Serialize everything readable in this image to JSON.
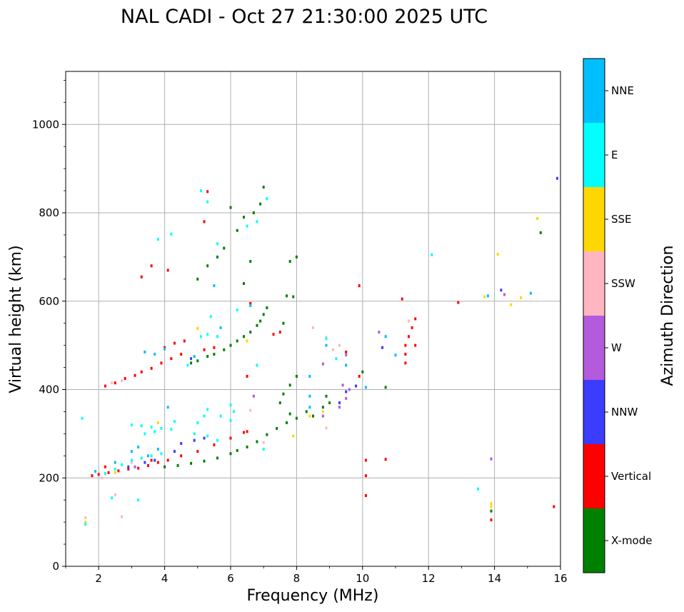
{
  "chart_data": {
    "type": "scatter",
    "title": "NAL CADI - Oct 27 21:30:00 2025 UTC",
    "xlabel": "Frequency (MHz)",
    "ylabel": "Virtual height (km)",
    "xlim": [
      1,
      16
    ],
    "ylim": [
      0,
      1120
    ],
    "xticks": [
      2,
      4,
      6,
      8,
      10,
      12,
      14,
      16
    ],
    "yticks": [
      0,
      200,
      400,
      600,
      800,
      1000
    ],
    "grid": true,
    "colorbar": {
      "title": "Azimuth Direction",
      "categories": [
        {
          "name": "X-mode",
          "color": "#008000"
        },
        {
          "name": "Vertical",
          "color": "#ff0000"
        },
        {
          "name": "NNW",
          "color": "#3c3cff"
        },
        {
          "name": "W",
          "color": "#b45adc"
        },
        {
          "name": "SSW",
          "color": "#ffb6c1"
        },
        {
          "name": "SSE",
          "color": "#ffd700"
        },
        {
          "name": "E",
          "color": "#00ffff"
        },
        {
          "name": "NNE",
          "color": "#00bfff"
        }
      ]
    },
    "series": [
      {
        "name": "X-mode",
        "points": [
          [
            4.0,
            225
          ],
          [
            4.4,
            228
          ],
          [
            4.8,
            233
          ],
          [
            5.2,
            238
          ],
          [
            5.6,
            245
          ],
          [
            6.0,
            255
          ],
          [
            6.2,
            262
          ],
          [
            6.5,
            270
          ],
          [
            6.8,
            282
          ],
          [
            7.1,
            298
          ],
          [
            7.4,
            312
          ],
          [
            7.7,
            325
          ],
          [
            7.8,
            345
          ],
          [
            8.0,
            335
          ],
          [
            8.3,
            350
          ],
          [
            8.5,
            340
          ],
          [
            8.8,
            360
          ],
          [
            9.0,
            370
          ],
          [
            8.9,
            385
          ],
          [
            7.5,
            370
          ],
          [
            7.6,
            390
          ],
          [
            7.8,
            410
          ],
          [
            8.0,
            430
          ],
          [
            4.8,
            460
          ],
          [
            5.0,
            465
          ],
          [
            5.3,
            475
          ],
          [
            5.5,
            480
          ],
          [
            5.8,
            490
          ],
          [
            6.0,
            500
          ],
          [
            6.2,
            510
          ],
          [
            6.4,
            520
          ],
          [
            6.6,
            530
          ],
          [
            6.8,
            545
          ],
          [
            6.9,
            555
          ],
          [
            7.0,
            570
          ],
          [
            7.1,
            585
          ],
          [
            7.9,
            610
          ],
          [
            7.7,
            612
          ],
          [
            8.0,
            700
          ],
          [
            7.8,
            690
          ],
          [
            6.6,
            690
          ],
          [
            6.4,
            640
          ],
          [
            5.0,
            650
          ],
          [
            5.3,
            680
          ],
          [
            5.6,
            700
          ],
          [
            5.8,
            720
          ],
          [
            6.2,
            760
          ],
          [
            6.4,
            790
          ],
          [
            6.7,
            800
          ],
          [
            6.9,
            820
          ],
          [
            7.0,
            858
          ],
          [
            6.0,
            812
          ],
          [
            10.0,
            440
          ],
          [
            10.7,
            405
          ],
          [
            15.4,
            755
          ],
          [
            13.9,
            125
          ],
          [
            7.6,
            550
          ]
        ]
      },
      {
        "name": "Vertical",
        "points": [
          [
            1.8,
            205
          ],
          [
            2.0,
            208
          ],
          [
            2.3,
            212
          ],
          [
            2.6,
            216
          ],
          [
            2.9,
            220
          ],
          [
            3.2,
            222
          ],
          [
            3.5,
            228
          ],
          [
            3.8,
            235
          ],
          [
            4.1,
            240
          ],
          [
            4.5,
            250
          ],
          [
            5.0,
            260
          ],
          [
            5.5,
            275
          ],
          [
            6.0,
            290
          ],
          [
            6.5,
            305
          ],
          [
            6.4,
            303
          ],
          [
            2.2,
            408
          ],
          [
            2.5,
            415
          ],
          [
            2.8,
            425
          ],
          [
            3.1,
            432
          ],
          [
            3.3,
            440
          ],
          [
            3.6,
            448
          ],
          [
            3.9,
            460
          ],
          [
            4.2,
            470
          ],
          [
            4.5,
            480
          ],
          [
            4.0,
            495
          ],
          [
            4.3,
            505
          ],
          [
            4.6,
            510
          ],
          [
            5.2,
            490
          ],
          [
            5.5,
            495
          ],
          [
            6.5,
            430
          ],
          [
            6.6,
            595
          ],
          [
            7.3,
            525
          ],
          [
            7.5,
            530
          ],
          [
            3.3,
            655
          ],
          [
            3.6,
            680
          ],
          [
            4.1,
            670
          ],
          [
            5.2,
            780
          ],
          [
            5.3,
            848
          ],
          [
            9.5,
            485
          ],
          [
            9.9,
            430
          ],
          [
            9.9,
            635
          ],
          [
            10.1,
            240
          ],
          [
            10.1,
            205
          ],
          [
            10.1,
            160
          ],
          [
            10.7,
            242
          ],
          [
            11.3,
            460
          ],
          [
            11.3,
            480
          ],
          [
            11.3,
            500
          ],
          [
            11.4,
            520
          ],
          [
            11.5,
            540
          ],
          [
            11.6,
            560
          ],
          [
            11.6,
            500
          ],
          [
            11.2,
            605
          ],
          [
            12.9,
            597
          ],
          [
            13.9,
            105
          ],
          [
            15.8,
            135
          ],
          [
            3.6,
            240
          ],
          [
            2.2,
            225
          ]
        ]
      },
      {
        "name": "NNW",
        "points": [
          [
            2.9,
            225
          ],
          [
            3.4,
            235
          ],
          [
            3.7,
            240
          ],
          [
            4.3,
            260
          ],
          [
            4.5,
            278
          ],
          [
            4.9,
            285
          ],
          [
            5.2,
            290
          ],
          [
            9.5,
            395
          ],
          [
            9.3,
            370
          ],
          [
            9.8,
            408
          ],
          [
            10.6,
            495
          ],
          [
            14.2,
            625
          ],
          [
            15.9,
            878
          ],
          [
            4.8,
            470
          ]
        ]
      },
      {
        "name": "W",
        "points": [
          [
            9.3,
            360
          ],
          [
            9.5,
            380
          ],
          [
            9.4,
            410
          ],
          [
            9.6,
            400
          ],
          [
            8.8,
            340
          ],
          [
            9.5,
            478
          ],
          [
            10.5,
            530
          ],
          [
            14.3,
            615
          ],
          [
            13.9,
            243
          ],
          [
            2.2,
            210
          ],
          [
            6.7,
            385
          ],
          [
            8.8,
            458
          ],
          [
            3.1,
            225
          ]
        ]
      },
      {
        "name": "SSW",
        "points": [
          [
            8.5,
            540
          ],
          [
            8.9,
            518
          ],
          [
            8.9,
            313
          ],
          [
            9.3,
            500
          ],
          [
            9.1,
            490
          ],
          [
            2.5,
            162
          ],
          [
            2.7,
            112
          ],
          [
            2.4,
            415
          ],
          [
            2.7,
            420
          ],
          [
            1.6,
            110
          ],
          [
            11.4,
            555
          ],
          [
            3.0,
            235
          ],
          [
            7.0,
            280
          ],
          [
            6.6,
            353
          ],
          [
            2.1,
            200
          ]
        ]
      },
      {
        "name": "SSE",
        "points": [
          [
            7.9,
            295
          ],
          [
            8.4,
            340
          ],
          [
            8.8,
            350
          ],
          [
            13.7,
            610
          ],
          [
            14.1,
            706
          ],
          [
            14.5,
            592
          ],
          [
            14.8,
            608
          ],
          [
            15.3,
            787
          ],
          [
            13.9,
            135
          ],
          [
            13.9,
            142
          ],
          [
            1.6,
            100
          ],
          [
            2.5,
            212
          ],
          [
            3.8,
            325
          ],
          [
            5.0,
            538
          ],
          [
            6.5,
            510
          ]
        ]
      },
      {
        "name": "E",
        "points": [
          [
            3.0,
            320
          ],
          [
            3.3,
            318
          ],
          [
            3.6,
            315
          ],
          [
            3.9,
            312
          ],
          [
            4.2,
            310
          ],
          [
            3.4,
            300
          ],
          [
            3.7,
            305
          ],
          [
            4.3,
            328
          ],
          [
            5.0,
            325
          ],
          [
            5.2,
            340
          ],
          [
            5.3,
            355
          ],
          [
            5.7,
            340
          ],
          [
            6.0,
            330
          ],
          [
            4.9,
            300
          ],
          [
            5.3,
            295
          ],
          [
            5.6,
            285
          ],
          [
            6.1,
            350
          ],
          [
            6.0,
            365
          ],
          [
            2.5,
            220
          ],
          [
            2.7,
            230
          ],
          [
            3.0,
            240
          ],
          [
            3.3,
            245
          ],
          [
            3.6,
            250
          ],
          [
            3.9,
            255
          ],
          [
            2.2,
            210
          ],
          [
            4.7,
            455
          ],
          [
            5.1,
            520
          ],
          [
            5.3,
            525
          ],
          [
            5.4,
            565
          ],
          [
            5.6,
            520
          ],
          [
            6.2,
            580
          ],
          [
            6.8,
            455
          ],
          [
            5.1,
            850
          ],
          [
            5.3,
            825
          ],
          [
            4.2,
            752
          ],
          [
            3.8,
            740
          ],
          [
            5.6,
            730
          ],
          [
            6.8,
            780
          ],
          [
            7.1,
            832
          ],
          [
            8.9,
            515
          ],
          [
            6.5,
            770
          ],
          [
            9.2,
            470
          ],
          [
            12.1,
            705
          ],
          [
            13.5,
            175
          ],
          [
            1.5,
            335
          ],
          [
            2.4,
            155
          ],
          [
            1.6,
            95
          ],
          [
            7.0,
            265
          ],
          [
            3.2,
            150
          ]
        ]
      },
      {
        "name": "NNE",
        "points": [
          [
            2.5,
            235
          ],
          [
            3.0,
            260
          ],
          [
            3.2,
            270
          ],
          [
            3.5,
            250
          ],
          [
            3.8,
            265
          ],
          [
            8.4,
            430
          ],
          [
            8.4,
            385
          ],
          [
            8.4,
            360
          ],
          [
            8.9,
            500
          ],
          [
            9.5,
            455
          ],
          [
            10.1,
            405
          ],
          [
            10.7,
            520
          ],
          [
            11.0,
            478
          ],
          [
            15.1,
            618
          ],
          [
            13.8,
            612
          ],
          [
            3.4,
            485
          ],
          [
            3.7,
            480
          ],
          [
            4.0,
            492
          ],
          [
            4.9,
            475
          ],
          [
            5.7,
            540
          ],
          [
            5.5,
            635
          ],
          [
            6.6,
            590
          ],
          [
            4.1,
            360
          ],
          [
            1.9,
            215
          ]
        ]
      }
    ]
  }
}
